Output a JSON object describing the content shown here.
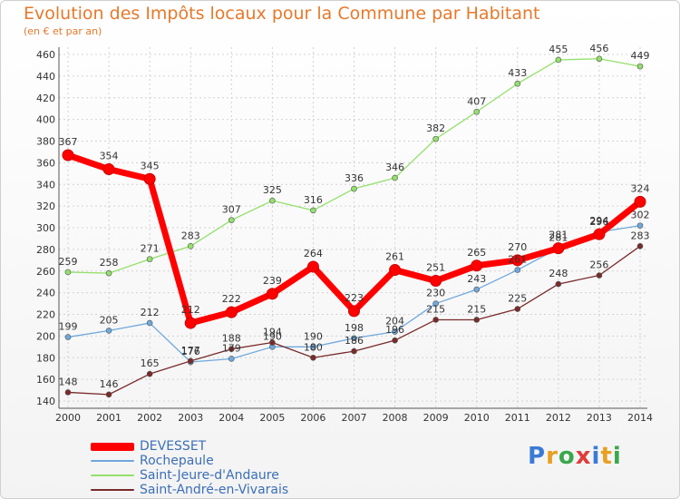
{
  "chart_data": {
    "type": "line",
    "title": "Evolution des Impôts locaux pour la Commune par Habitant",
    "subtitle": "(en € et par an)",
    "x": [
      "2000",
      "2001",
      "2002",
      "2003",
      "2004",
      "2005",
      "2006",
      "2007",
      "2008",
      "2009",
      "2010",
      "2011",
      "2012",
      "2013",
      "2014"
    ],
    "ylim": [
      140,
      460
    ],
    "yticks": [
      140,
      160,
      180,
      200,
      220,
      240,
      260,
      280,
      300,
      320,
      340,
      360,
      380,
      400,
      420,
      440,
      460
    ],
    "grid": true,
    "legend_position": "bottom-left",
    "series": [
      {
        "name": "DEVESSET",
        "color": "#ff0000",
        "values": [
          367,
          354,
          345,
          212,
          222,
          239,
          264,
          223,
          261,
          251,
          265,
          270,
          281,
          294,
          324
        ]
      },
      {
        "name": "Rochepaule",
        "color": "#6fa8dc",
        "values": [
          199,
          205,
          212,
          176,
          179,
          190,
          190,
          198,
          204,
          230,
          243,
          261,
          281,
          296,
          302
        ]
      },
      {
        "name": "Saint-Jeure-d'Andaure",
        "color": "#93e06b",
        "values": [
          259,
          258,
          271,
          283,
          307,
          325,
          316,
          336,
          346,
          382,
          407,
          433,
          455,
          456,
          449
        ]
      },
      {
        "name": "Saint-André-en-Vivarais",
        "color": "#7a2a2a",
        "values": [
          148,
          146,
          165,
          177,
          188,
          194,
          180,
          186,
          196,
          215,
          215,
          225,
          248,
          256,
          283
        ]
      }
    ]
  },
  "brand": {
    "letters": [
      {
        "ch": "P",
        "color": "#3b7bd6"
      },
      {
        "ch": "r",
        "color": "#e8a020"
      },
      {
        "ch": "o",
        "color": "#3aa84a"
      },
      {
        "ch": "x",
        "color": "#e03b3b"
      },
      {
        "ch": "i",
        "color": "#3b7bd6"
      },
      {
        "ch": "t",
        "color": "#e8a020"
      },
      {
        "ch": "i",
        "color": "#3aa84a"
      }
    ]
  }
}
